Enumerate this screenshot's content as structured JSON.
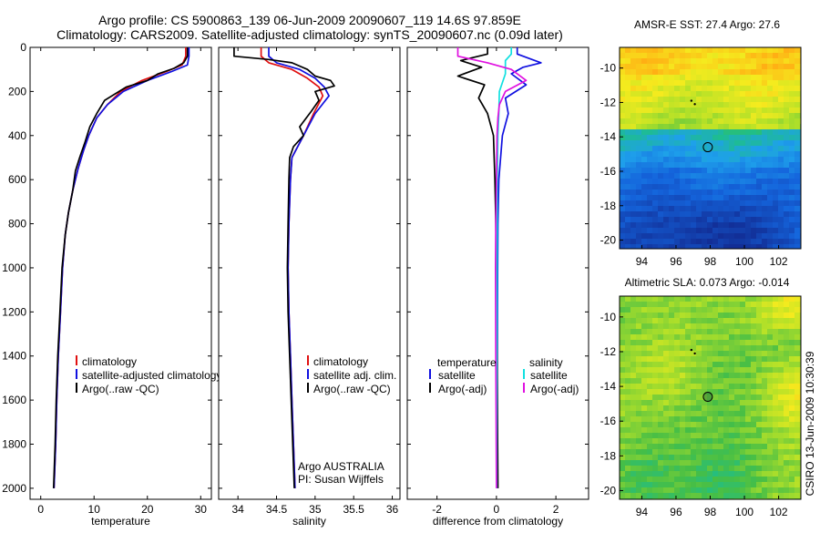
{
  "title": {
    "line1": "Argo profile: CS 5900863_139 06-Jun-2009 20090607_119 14.6S 97.859E",
    "line2": "Climatology: CARS2009. Satellite-adjusted climatology: synTS_20090607.nc (0.09d later)"
  },
  "chart_data": [
    {
      "id": "temperature",
      "type": "line",
      "xlabel": "temperature",
      "ylabel": "",
      "xlim": [
        -2,
        32
      ],
      "ylim": [
        2050,
        0
      ],
      "xticks": [
        "0",
        "10",
        "20",
        "30"
      ],
      "yticks": [
        "0",
        "200",
        "400",
        "600",
        "800",
        "1000",
        "1200",
        "1400",
        "1600",
        "1800",
        "2000"
      ],
      "legend": [
        "climatology",
        "satellite-adjusted climatology",
        "Argo(..raw -QC)"
      ],
      "series": [
        {
          "name": "climatology",
          "color": "#e01010",
          "points": [
            [
              27.2,
              0
            ],
            [
              27.2,
              40
            ],
            [
              26.5,
              80
            ],
            [
              23.5,
              110
            ],
            [
              19,
              150
            ],
            [
              15,
              200
            ],
            [
              12.5,
              260
            ],
            [
              10.5,
              320
            ],
            [
              9,
              400
            ],
            [
              8,
              470
            ],
            [
              7,
              550
            ],
            [
              6,
              650
            ],
            [
              5.2,
              750
            ],
            [
              4.6,
              850
            ],
            [
              4.1,
              1000
            ],
            [
              3.7,
              1200
            ],
            [
              3.3,
              1400
            ],
            [
              3,
              1600
            ],
            [
              2.8,
              1800
            ],
            [
              2.5,
              2000
            ]
          ]
        },
        {
          "name": "satellite-adjusted climatology",
          "color": "#1010e0",
          "points": [
            [
              27.8,
              0
            ],
            [
              27.8,
              40
            ],
            [
              27.5,
              80
            ],
            [
              24.5,
              110
            ],
            [
              20,
              150
            ],
            [
              15.5,
              200
            ],
            [
              12.5,
              260
            ],
            [
              10.5,
              320
            ],
            [
              9,
              400
            ],
            [
              8,
              470
            ],
            [
              7,
              550
            ],
            [
              6,
              650
            ],
            [
              5.2,
              750
            ],
            [
              4.6,
              850
            ],
            [
              4.1,
              1000
            ],
            [
              3.7,
              1200
            ],
            [
              3.3,
              1400
            ],
            [
              3,
              1600
            ],
            [
              2.8,
              1800
            ],
            [
              2.5,
              2000
            ]
          ]
        },
        {
          "name": "Argo(..raw -QC)",
          "color": "#000000",
          "points": [
            [
              27.5,
              0
            ],
            [
              27.5,
              40
            ],
            [
              26.8,
              70
            ],
            [
              25,
              95
            ],
            [
              22,
              120
            ],
            [
              20,
              150
            ],
            [
              16,
              180
            ],
            [
              12,
              240
            ],
            [
              10.5,
              300
            ],
            [
              9.2,
              360
            ],
            [
              8.3,
              430
            ],
            [
              7.3,
              500
            ],
            [
              6.5,
              560
            ],
            [
              6,
              650
            ],
            [
              5.2,
              750
            ],
            [
              4.6,
              850
            ],
            [
              4,
              1000
            ],
            [
              3.6,
              1200
            ],
            [
              3.2,
              1400
            ],
            [
              2.9,
              1600
            ],
            [
              2.7,
              1800
            ],
            [
              2.4,
              2000
            ]
          ]
        }
      ]
    },
    {
      "id": "salinity",
      "type": "line",
      "xlabel": "salinity",
      "ylabel": "",
      "xlim": [
        33.75,
        36.1
      ],
      "ylim": [
        2050,
        0
      ],
      "xticks": [
        "34",
        "34.5",
        "35",
        "35.5",
        "36"
      ],
      "legend": [
        "climatology",
        "satellite adj. clim.",
        "Argo(..raw -QC)"
      ],
      "annotation": [
        "Argo AUSTRALIA",
        "PI: Susan Wijffels"
      ],
      "series": [
        {
          "name": "climatology",
          "color": "#e01010",
          "points": [
            [
              34.3,
              0
            ],
            [
              34.3,
              40
            ],
            [
              34.4,
              70
            ],
            [
              34.7,
              100
            ],
            [
              34.9,
              140
            ],
            [
              35.05,
              180
            ],
            [
              35.1,
              220
            ],
            [
              34.98,
              300
            ],
            [
              34.85,
              400
            ],
            [
              34.7,
              500
            ],
            [
              34.68,
              600
            ],
            [
              34.66,
              800
            ],
            [
              34.65,
              1000
            ],
            [
              34.66,
              1200
            ],
            [
              34.68,
              1400
            ],
            [
              34.7,
              1600
            ],
            [
              34.72,
              1800
            ],
            [
              34.74,
              2000
            ]
          ]
        },
        {
          "name": "satellite adj. clim.",
          "color": "#1010e0",
          "points": [
            [
              34.4,
              0
            ],
            [
              34.4,
              40
            ],
            [
              34.5,
              70
            ],
            [
              34.8,
              100
            ],
            [
              35,
              140
            ],
            [
              35.12,
              180
            ],
            [
              35.18,
              220
            ],
            [
              35,
              300
            ],
            [
              34.85,
              400
            ],
            [
              34.7,
              500
            ],
            [
              34.68,
              600
            ],
            [
              34.66,
              800
            ],
            [
              34.65,
              1000
            ],
            [
              34.66,
              1200
            ],
            [
              34.68,
              1400
            ],
            [
              34.7,
              1600
            ],
            [
              34.72,
              1800
            ],
            [
              34.74,
              2000
            ]
          ]
        },
        {
          "name": "Argo(..raw -QC)",
          "color": "#000000",
          "points": [
            [
              33.95,
              0
            ],
            [
              33.95,
              40
            ],
            [
              34.4,
              55
            ],
            [
              34.7,
              70
            ],
            [
              34.9,
              100
            ],
            [
              35,
              130
            ],
            [
              35.2,
              150
            ],
            [
              35.25,
              175
            ],
            [
              35,
              200
            ],
            [
              35.05,
              240
            ],
            [
              34.95,
              290
            ],
            [
              34.8,
              360
            ],
            [
              34.85,
              400
            ],
            [
              34.72,
              450
            ],
            [
              34.67,
              500
            ],
            [
              34.66,
              600
            ],
            [
              34.65,
              800
            ],
            [
              34.64,
              1000
            ],
            [
              34.65,
              1200
            ],
            [
              34.67,
              1400
            ],
            [
              34.69,
              1600
            ],
            [
              34.71,
              1800
            ],
            [
              34.73,
              2000
            ]
          ]
        }
      ]
    },
    {
      "id": "difference",
      "type": "line",
      "xlabel": "difference from climatology",
      "ylabel": "",
      "xlim": [
        -3,
        3.1
      ],
      "ylim": [
        2050,
        0
      ],
      "xticks": [
        "-2",
        "0",
        "2"
      ],
      "legend_left_title": "temperature",
      "legend_right_title": "salinity",
      "legend_left": [
        "satellite",
        "Argo(-adj)"
      ],
      "legend_right": [
        "satellite",
        "Argo(-adj)"
      ],
      "series": [
        {
          "name": "temperature satellite",
          "color": "#1010e0",
          "points": [
            [
              0.7,
              0
            ],
            [
              0.7,
              30
            ],
            [
              1.5,
              70
            ],
            [
              0.9,
              90
            ],
            [
              0.5,
              120
            ],
            [
              1,
              170
            ],
            [
              0.3,
              230
            ],
            [
              0.4,
              300
            ],
            [
              0.2,
              400
            ],
            [
              0.08,
              600
            ],
            [
              0.05,
              800
            ],
            [
              0.04,
              1000
            ],
            [
              0.03,
              1400
            ],
            [
              0.03,
              2000
            ]
          ]
        },
        {
          "name": "temperature Argo(-adj)",
          "color": "#000000",
          "points": [
            [
              -0.3,
              0
            ],
            [
              -0.3,
              30
            ],
            [
              -1.2,
              60
            ],
            [
              -0.5,
              90
            ],
            [
              -1.3,
              130
            ],
            [
              -0.4,
              170
            ],
            [
              -0.6,
              230
            ],
            [
              -0.3,
              300
            ],
            [
              -0.1,
              400
            ],
            [
              -0.05,
              600
            ],
            [
              -0.02,
              800
            ],
            [
              0,
              1000
            ],
            [
              0.02,
              1400
            ],
            [
              0.05,
              2000
            ]
          ]
        },
        {
          "name": "salinity satellite",
          "color": "#10e0e0",
          "points": [
            [
              0.5,
              0
            ],
            [
              0.5,
              30
            ],
            [
              0.3,
              60
            ],
            [
              0.3,
              120
            ],
            [
              0.1,
              200
            ],
            [
              0.08,
              300
            ],
            [
              0.05,
              400
            ],
            [
              0.03,
              600
            ],
            [
              0.02,
              1000
            ],
            [
              0.01,
              1400
            ],
            [
              0.01,
              2000
            ]
          ]
        },
        {
          "name": "salinity Argo(-adj)",
          "color": "#e010e0",
          "points": [
            [
              -1.3,
              0
            ],
            [
              -1.3,
              40
            ],
            [
              -0.3,
              70
            ],
            [
              0.5,
              100
            ],
            [
              1,
              150
            ],
            [
              0.3,
              200
            ],
            [
              0.1,
              260
            ],
            [
              0.05,
              320
            ],
            [
              0.02,
              400
            ],
            [
              0,
              600
            ],
            [
              -0.02,
              800
            ],
            [
              -0.03,
              1000
            ],
            [
              -0.02,
              1400
            ],
            [
              0,
              2000
            ]
          ]
        }
      ]
    }
  ],
  "maps": [
    {
      "title": "AMSR-E SST: 27.4 Argo: 27.6",
      "xticks": [
        "94",
        "96",
        "98",
        "100",
        "102"
      ],
      "yticks": [
        "-10",
        "-12",
        "-14",
        "-16",
        "-18",
        "-20"
      ],
      "xlim": [
        92.7,
        103.3
      ],
      "ylim": [
        -20.5,
        -8.8
      ],
      "marker": [
        97.86,
        -14.6
      ],
      "track": [
        [
          96.9,
          -11.9
        ],
        [
          97.1,
          -12.1
        ]
      ]
    },
    {
      "title": "Altimetric SLA: 0.073 Argo: -0.014",
      "xticks": [
        "94",
        "96",
        "98",
        "100",
        "102"
      ],
      "yticks": [
        "-10",
        "-12",
        "-14",
        "-16",
        "-18",
        "-20"
      ],
      "xlim": [
        92.7,
        103.3
      ],
      "ylim": [
        -20.5,
        -8.8
      ],
      "marker": [
        97.86,
        -14.6
      ],
      "track": [
        [
          96.9,
          -11.9
        ],
        [
          97.1,
          -12.1
        ]
      ]
    }
  ],
  "stamp": "CSIRO 13-Jun-2009 10:30:39"
}
